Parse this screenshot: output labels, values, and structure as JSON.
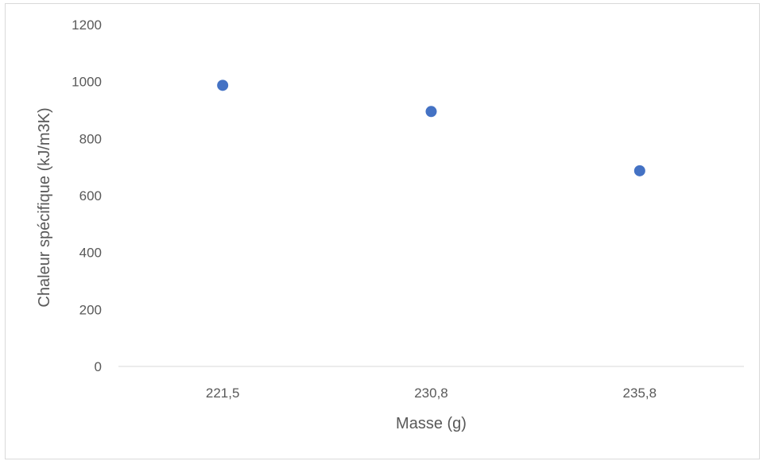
{
  "chart_data": {
    "type": "scatter",
    "categories": [
      "221,5",
      "230,8",
      "235,8"
    ],
    "series": [
      {
        "values": [
          987,
          895,
          687
        ],
        "color": "#4472c4"
      }
    ],
    "xlabel": "Masse (g)",
    "ylabel": "Chaleur spécifique (kJ/m3K)",
    "ylim": [
      0,
      1200
    ],
    "yticks": [
      "0",
      "200",
      "400",
      "600",
      "800",
      "1000",
      "1200"
    ],
    "grid": false,
    "legend": "none",
    "axis_color": "#d9d9d9"
  }
}
